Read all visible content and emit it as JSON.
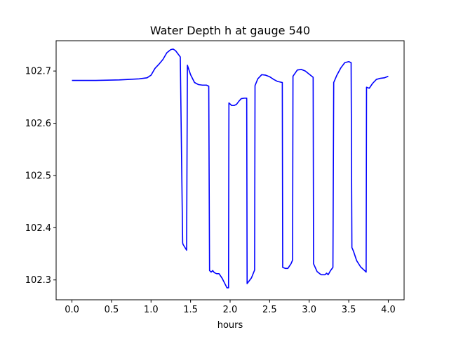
{
  "chart_data": {
    "type": "line",
    "title": "Water Depth h at gauge 540",
    "xlabel": "hours",
    "ylabel": "",
    "xlim": [
      -0.2,
      4.2
    ],
    "ylim": [
      102.262,
      102.758
    ],
    "xticks": [
      0.0,
      0.5,
      1.0,
      1.5,
      2.0,
      2.5,
      3.0,
      3.5,
      4.0
    ],
    "xtick_labels": [
      "0.0",
      "0.5",
      "1.0",
      "1.5",
      "2.0",
      "2.5",
      "3.0",
      "3.5",
      "4.0"
    ],
    "yticks": [
      102.3,
      102.4,
      102.5,
      102.6,
      102.7
    ],
    "ytick_labels": [
      "102.3",
      "102.4",
      "102.5",
      "102.6",
      "102.7"
    ],
    "grid": false,
    "series": [
      {
        "color": "#0000ff",
        "x": [
          0.0,
          0.3,
          0.6,
          0.85,
          0.95,
          1.0,
          1.05,
          1.1,
          1.15,
          1.2,
          1.25,
          1.28,
          1.31,
          1.34,
          1.37,
          1.4,
          1.405,
          1.45,
          1.46,
          1.5,
          1.55,
          1.6,
          1.65,
          1.7,
          1.73,
          1.74,
          1.76,
          1.78,
          1.8,
          1.83,
          1.86,
          1.9,
          1.93,
          1.96,
          1.98,
          1.985,
          2.02,
          2.05,
          2.08,
          2.11,
          2.14,
          2.18,
          2.21,
          2.215,
          2.24,
          2.27,
          2.31,
          2.315,
          2.35,
          2.4,
          2.45,
          2.5,
          2.55,
          2.6,
          2.66,
          2.665,
          2.7,
          2.73,
          2.77,
          2.79,
          2.795,
          2.85,
          2.9,
          2.95,
          3.0,
          3.05,
          3.055,
          3.1,
          3.15,
          3.2,
          3.22,
          3.24,
          3.27,
          3.3,
          3.31,
          3.35,
          3.4,
          3.45,
          3.5,
          3.53,
          3.54,
          3.56,
          3.6,
          3.65,
          3.7,
          3.72,
          3.725,
          3.76,
          3.8,
          3.85,
          3.9,
          3.95,
          4.0
        ],
        "y": [
          102.682,
          102.682,
          102.683,
          102.685,
          102.687,
          102.692,
          102.705,
          102.713,
          102.722,
          102.735,
          102.741,
          102.742,
          102.739,
          102.733,
          102.727,
          102.371,
          102.368,
          102.357,
          102.711,
          102.693,
          102.678,
          102.674,
          102.673,
          102.673,
          102.671,
          102.318,
          102.315,
          102.318,
          102.314,
          102.312,
          102.312,
          102.303,
          102.294,
          102.285,
          102.285,
          102.639,
          102.634,
          102.634,
          102.636,
          102.642,
          102.647,
          102.648,
          102.648,
          102.293,
          102.298,
          102.304,
          102.319,
          102.672,
          102.685,
          102.693,
          102.692,
          102.689,
          102.684,
          102.68,
          102.678,
          102.324,
          102.322,
          102.322,
          102.331,
          102.338,
          102.69,
          102.702,
          102.703,
          102.7,
          102.694,
          102.688,
          102.331,
          102.316,
          102.31,
          102.31,
          102.313,
          102.31,
          102.318,
          102.324,
          102.678,
          102.692,
          102.706,
          102.716,
          102.718,
          102.716,
          102.362,
          102.355,
          102.337,
          102.325,
          102.318,
          102.315,
          102.669,
          102.667,
          102.676,
          102.684,
          102.686,
          102.687,
          102.69
        ]
      }
    ]
  }
}
